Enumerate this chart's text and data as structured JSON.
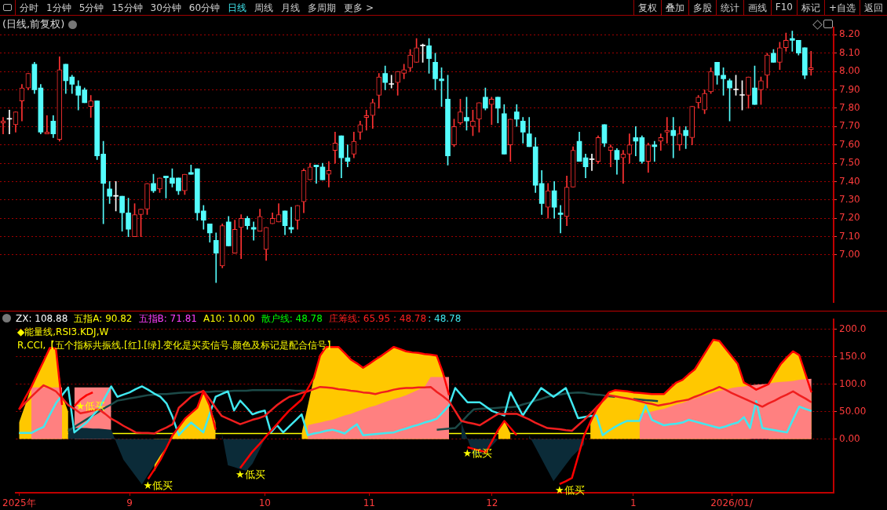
{
  "chart_data": [
    {
      "type": "other",
      "annotations": [
        "分时",
        "1分钟",
        "5分钟",
        "15分钟",
        "30分钟",
        "60分钟",
        "日线",
        "周线",
        "月线",
        "多周期",
        "更多 >",
        "复权",
        "叠加",
        "多股",
        "统计",
        "画线",
        "F10",
        "标记",
        "+自选",
        "返回"
      ]
    },
    {
      "type": "candlestick",
      "title": "(日线,前复权)",
      "tick_labels": "y",
      "grid": "y",
      "categories": [
        null,
        null,
        null,
        null,
        null,
        null,
        null,
        null,
        null,
        null,
        null,
        null,
        null,
        null,
        null,
        null,
        null,
        null,
        null,
        null,
        null,
        null,
        null,
        null,
        null,
        null,
        null,
        null,
        null,
        null,
        null,
        null,
        null,
        null,
        null,
        null,
        null,
        null,
        null,
        null,
        null,
        null,
        null,
        null,
        null,
        null,
        null,
        null,
        null,
        null,
        null,
        null,
        null,
        null,
        null,
        null,
        null,
        null,
        null,
        null,
        null,
        null,
        null,
        null,
        null,
        null,
        null,
        null,
        null,
        null,
        null,
        null,
        null,
        null,
        null,
        null,
        null,
        null,
        null,
        null,
        null,
        null,
        null,
        null,
        null,
        null,
        null,
        null,
        null,
        null,
        null,
        null,
        null,
        null,
        null,
        null,
        null,
        null,
        null,
        null,
        null,
        null,
        null,
        null,
        null,
        null,
        null,
        null,
        null,
        null,
        null,
        null,
        null,
        null,
        null,
        null,
        null,
        null,
        null,
        null,
        null,
        null,
        null,
        null,
        null,
        null,
        null,
        null,
        null,
        null
      ],
      "ylim": [
        6.74,
        8.24
      ],
      "yticks": [
        {
          "value": 7,
          "label": "7.00"
        },
        {
          "value": 7.1,
          "label": "7.10"
        },
        {
          "value": 7.2,
          "label": "7.20"
        },
        {
          "value": 7.3,
          "label": "7.30"
        },
        {
          "value": 7.4,
          "label": "7.40"
        },
        {
          "value": 7.5,
          "label": "7.50"
        },
        {
          "value": 7.6,
          "label": "7.60"
        },
        {
          "value": 7.7,
          "label": "7.70"
        },
        {
          "value": 7.8,
          "label": "7.80"
        },
        {
          "value": 7.9,
          "label": "7.90"
        },
        {
          "value": 8,
          "label": "8.00"
        },
        {
          "value": 8.1,
          "label": "8.10"
        },
        {
          "value": 8.2,
          "label": "8.20"
        }
      ],
      "ohlc": [
        [
          7.72,
          7.75,
          7.66,
          7.73
        ],
        [
          7.74,
          7.79,
          7.66,
          7.74
        ],
        [
          7.71,
          7.78,
          7.67,
          7.78
        ],
        [
          7.84,
          7.93,
          7.73,
          7.91
        ],
        [
          7.91,
          7.99,
          7.9,
          7.99
        ],
        [
          8.04,
          8.05,
          7.88,
          7.9
        ],
        [
          7.91,
          7.93,
          7.66,
          7.67
        ],
        [
          7.66,
          7.76,
          7.66,
          7.67
        ],
        [
          7.73,
          7.76,
          7.64,
          7.66
        ],
        [
          7.63,
          8.08,
          7.62,
          8.01
        ],
        [
          8.04,
          8.04,
          7.88,
          7.95
        ],
        [
          7.97,
          7.98,
          7.88,
          7.93
        ],
        [
          7.92,
          7.95,
          7.79,
          7.87
        ],
        [
          7.9,
          7.91,
          7.83,
          7.83
        ],
        [
          7.81,
          7.87,
          7.75,
          7.84
        ],
        [
          7.84,
          7.84,
          7.52,
          7.54
        ],
        [
          7.55,
          7.62,
          7.17,
          7.39
        ],
        [
          7.36,
          7.4,
          7.28,
          7.32
        ],
        [
          7.32,
          7.4,
          7.24,
          7.32
        ],
        [
          7.32,
          7.32,
          7.13,
          7.23
        ],
        [
          7.23,
          7.31,
          7.1,
          7.14
        ],
        [
          7.1,
          7.28,
          7.1,
          7.22
        ],
        [
          7.22,
          7.25,
          7.1,
          7.25
        ],
        [
          7.25,
          7.39,
          7.22,
          7.39
        ],
        [
          7.39,
          7.44,
          7.34,
          7.35
        ],
        [
          7.36,
          7.42,
          7.34,
          7.42
        ],
        [
          7.43,
          7.43,
          7.31,
          7.42
        ],
        [
          7.42,
          7.47,
          7.37,
          7.39
        ],
        [
          7.42,
          7.42,
          7.33,
          7.35
        ],
        [
          7.35,
          7.44,
          7.33,
          7.44
        ],
        [
          7.45,
          7.49,
          7.44,
          7.44
        ],
        [
          7.47,
          7.47,
          7.19,
          7.23
        ],
        [
          7.24,
          7.27,
          7.14,
          7.19
        ],
        [
          7.17,
          7.17,
          7.07,
          7.12
        ],
        [
          7.08,
          7.12,
          6.85,
          7.01
        ],
        [
          6.94,
          7.17,
          6.93,
          7.16
        ],
        [
          7.18,
          7.21,
          7.05,
          7.05
        ],
        [
          7.01,
          7.19,
          7.01,
          7.14
        ],
        [
          7.15,
          7.22,
          6.98,
          7.2
        ],
        [
          7.2,
          7.21,
          7.14,
          7.16
        ],
        [
          7.15,
          7.18,
          7.08,
          7.14
        ],
        [
          7.13,
          7.25,
          7.13,
          7.21
        ],
        [
          7.03,
          7.15,
          6.97,
          7.15
        ],
        [
          7.17,
          7.23,
          7.17,
          7.2
        ],
        [
          7.18,
          7.28,
          7.18,
          7.22
        ],
        [
          7.24,
          7.24,
          7.11,
          7.16
        ],
        [
          7.15,
          7.26,
          7.12,
          7.14
        ],
        [
          7.19,
          7.27,
          7.14,
          7.27
        ],
        [
          7.29,
          7.47,
          7.23,
          7.46
        ],
        [
          7.41,
          7.5,
          7.41,
          7.48
        ],
        [
          7.49,
          7.49,
          7.39,
          7.48
        ],
        [
          7.48,
          7.5,
          7.41,
          7.41
        ],
        [
          7.44,
          7.51,
          7.37,
          7.46
        ],
        [
          7.57,
          7.67,
          7.5,
          7.61
        ],
        [
          7.65,
          7.65,
          7.42,
          7.53
        ],
        [
          7.53,
          7.6,
          7.48,
          7.51
        ],
        [
          7.55,
          7.67,
          7.53,
          7.62
        ],
        [
          7.67,
          7.73,
          7.63,
          7.71
        ],
        [
          7.75,
          7.79,
          7.68,
          7.76
        ],
        [
          7.76,
          7.85,
          7.69,
          7.83
        ],
        [
          7.87,
          7.99,
          7.8,
          7.97
        ],
        [
          7.99,
          8.03,
          7.9,
          7.94
        ],
        [
          7.93,
          7.98,
          7.91,
          7.93
        ],
        [
          7.94,
          8.0,
          7.87,
          8.0
        ],
        [
          7.99,
          8.04,
          7.96,
          8.01
        ],
        [
          8.02,
          8.12,
          8.0,
          8.09
        ],
        [
          8.05,
          8.18,
          8.05,
          8.13
        ],
        [
          8.14,
          8.15,
          8.05,
          8.14
        ],
        [
          8.14,
          8.18,
          7.99,
          8.07
        ],
        [
          8.05,
          8.1,
          7.9,
          7.96
        ],
        [
          7.96,
          8.02,
          7.81,
          7.95
        ],
        [
          7.85,
          7.98,
          7.49,
          7.54
        ],
        [
          7.6,
          7.74,
          7.59,
          7.7
        ],
        [
          7.72,
          7.85,
          7.71,
          7.78
        ],
        [
          7.75,
          7.86,
          7.68,
          7.73
        ],
        [
          7.7,
          7.79,
          7.65,
          7.73
        ],
        [
          7.74,
          7.83,
          7.67,
          7.83
        ],
        [
          7.86,
          7.91,
          7.79,
          7.8
        ],
        [
          7.82,
          7.86,
          7.71,
          7.85
        ],
        [
          7.86,
          7.86,
          7.72,
          7.8
        ],
        [
          7.77,
          7.82,
          7.55,
          7.55
        ],
        [
          7.6,
          7.74,
          7.51,
          7.74
        ],
        [
          7.78,
          7.82,
          7.7,
          7.74
        ],
        [
          7.73,
          7.75,
          7.61,
          7.67
        ],
        [
          7.66,
          7.75,
          7.59,
          7.59
        ],
        [
          7.59,
          7.64,
          7.34,
          7.38
        ],
        [
          7.39,
          7.46,
          7.22,
          7.28
        ],
        [
          7.26,
          7.39,
          7.2,
          7.35
        ],
        [
          7.35,
          7.4,
          7.2,
          7.26
        ],
        [
          7.23,
          7.27,
          7.12,
          7.22
        ],
        [
          7.21,
          7.43,
          7.16,
          7.37
        ],
        [
          7.37,
          7.59,
          7.37,
          7.57
        ],
        [
          7.62,
          7.67,
          7.51,
          7.51
        ],
        [
          7.53,
          7.55,
          7.42,
          7.48
        ],
        [
          7.52,
          7.55,
          7.46,
          7.52
        ],
        [
          7.51,
          7.65,
          7.5,
          7.64
        ],
        [
          7.71,
          7.71,
          7.59,
          7.61
        ],
        [
          7.57,
          7.6,
          7.48,
          7.59
        ],
        [
          7.57,
          7.58,
          7.44,
          7.52
        ],
        [
          7.53,
          7.57,
          7.39,
          7.55
        ],
        [
          7.55,
          7.66,
          7.5,
          7.6
        ],
        [
          7.64,
          7.7,
          7.54,
          7.62
        ],
        [
          7.64,
          7.65,
          7.5,
          7.51
        ],
        [
          7.51,
          7.61,
          7.45,
          7.6
        ],
        [
          7.6,
          7.62,
          7.51,
          7.59
        ],
        [
          7.62,
          7.66,
          7.57,
          7.64
        ],
        [
          7.67,
          7.75,
          7.61,
          7.68
        ],
        [
          7.68,
          7.75,
          7.53,
          7.65
        ],
        [
          7.6,
          7.7,
          7.57,
          7.66
        ],
        [
          7.68,
          7.7,
          7.58,
          7.65
        ],
        [
          7.64,
          7.81,
          7.6,
          7.81
        ],
        [
          7.83,
          7.87,
          7.8,
          7.86
        ],
        [
          7.79,
          7.9,
          7.77,
          7.88
        ],
        [
          7.89,
          8.02,
          7.88,
          8.0
        ],
        [
          8.05,
          8.05,
          7.93,
          7.98
        ],
        [
          7.98,
          8.02,
          7.87,
          7.96
        ],
        [
          7.95,
          7.96,
          7.73,
          7.91
        ],
        [
          7.9,
          7.98,
          7.87,
          7.9
        ],
        [
          7.87,
          7.95,
          7.79,
          7.87
        ],
        [
          7.87,
          7.97,
          7.8,
          7.97
        ],
        [
          7.91,
          8.03,
          7.82,
          7.82
        ],
        [
          7.9,
          7.97,
          7.82,
          7.95
        ],
        [
          7.98,
          8.1,
          7.91,
          8.09
        ],
        [
          8.1,
          8.12,
          8.05,
          8.05
        ],
        [
          8.05,
          8.16,
          8.01,
          8.13
        ],
        [
          8.13,
          8.21,
          8.11,
          8.17
        ],
        [
          8.18,
          8.22,
          8.11,
          8.17
        ],
        [
          8.17,
          8.17,
          8.09,
          8.1
        ],
        [
          8.13,
          8.13,
          7.96,
          7.98
        ],
        [
          8.01,
          8.11,
          7.98,
          8.02
        ]
      ]
    },
    {
      "type": "line",
      "grid": "y",
      "ylim": [
        -98,
        218
      ],
      "categories": [
        "2025年",
        null,
        null,
        null,
        null,
        null,
        null,
        null,
        null,
        null,
        null,
        null,
        null,
        null,
        null,
        null,
        null,
        null,
        "9",
        null,
        null,
        null,
        null,
        null,
        null,
        null,
        null,
        null,
        null,
        null,
        null,
        null,
        null,
        null,
        null,
        null,
        null,
        null,
        null,
        null,
        "10",
        null,
        null,
        null,
        null,
        null,
        null,
        null,
        null,
        null,
        null,
        null,
        null,
        null,
        null,
        null,
        null,
        "11",
        null,
        null,
        null,
        null,
        null,
        null,
        null,
        null,
        null,
        null,
        null,
        null,
        null,
        null,
        null,
        null,
        null,
        null,
        null,
        "12",
        null,
        null,
        null,
        null,
        null,
        null,
        null,
        null,
        null,
        null,
        null,
        null,
        null,
        null,
        null,
        null,
        null,
        null,
        null,
        null,
        null,
        null,
        "1",
        null,
        null,
        null,
        null,
        null,
        null,
        null,
        null,
        null,
        null,
        null,
        null,
        null,
        null,
        null,
        "2026/01/",
        null,
        null,
        null,
        null,
        null,
        null,
        null,
        null,
        null,
        null,
        null,
        null,
        null
      ],
      "yticks": [
        {
          "value": 0,
          "label": "0.00"
        },
        {
          "value": 50,
          "label": "50.00"
        },
        {
          "value": 100,
          "label": "100.0"
        },
        {
          "value": 150,
          "label": "150.0"
        },
        {
          "value": 200,
          "label": "200.0"
        }
      ],
      "ref_lines": [
        {
          "axis": "y",
          "value": 10,
          "color": "#ffff00"
        }
      ],
      "annotations": [
        "ZX: 108.88",
        "五指A: 90.82",
        "五指B: 71.81",
        "A10: 10.00",
        "散户线: 48.78",
        "庄筹线: 65.95 : 48.78",
        ": 48.78",
        "◆能量线,RSI3.KDJ,W",
        "R,CCI,【五个指标共振线.[红].[绿].变化是买卖信号.颜色及标记是配合信号】"
      ],
      "series": [
        {
          "type": "area",
          "color": "#ffc800",
          "values": [
            30,
            62,
            95,
            119,
            142,
            166,
            165,
            80,
            50,
            null,
            null,
            null,
            null,
            null,
            null,
            null,
            null,
            null,
            null,
            null,
            null,
            null,
            -60,
            -38,
            -16,
            7,
            22,
            37,
            47,
            57,
            87,
            60,
            30,
            null,
            null,
            null,
            null,
            null,
            null,
            null,
            null,
            null,
            null,
            null,
            null,
            null,
            10,
            60,
            112,
            152,
            168,
            168,
            168,
            157,
            145,
            138,
            130,
            137,
            145,
            152,
            160,
            168,
            164,
            160,
            158,
            157,
            155,
            154,
            152,
            121,
            100,
            null,
            null,
            null,
            null,
            null,
            null,
            null,
            17,
            33,
            10,
            null,
            null,
            null,
            null,
            null,
            null,
            null,
            null,
            null,
            null,
            null,
            null,
            30,
            54,
            70,
            85,
            89,
            88,
            87,
            85,
            84,
            83,
            82,
            82,
            82,
            93,
            103,
            108,
            118,
            127,
            145,
            163,
            181,
            179,
            165,
            151,
            137,
            103,
            97,
            null,
            null,
            100,
            119,
            137,
            149,
            160,
            153,
            119,
            85
          ]
        },
        {
          "type": "area",
          "color": "#ff8080",
          "values": [
            null,
            null,
            94,
            94,
            94,
            94,
            94,
            94,
            null,
            94,
            94,
            94,
            94,
            94,
            94,
            94,
            null,
            null,
            null,
            null,
            null,
            null,
            null,
            null,
            null,
            null,
            null,
            null,
            null,
            null,
            null,
            null,
            null,
            null,
            null,
            null,
            null,
            null,
            null,
            null,
            null,
            null,
            null,
            null,
            null,
            null,
            null,
            25,
            28,
            30,
            33,
            35,
            39,
            43,
            46,
            50,
            54,
            58,
            61,
            65,
            69,
            73,
            76,
            80,
            85,
            90,
            95,
            113,
            113,
            113,
            113,
            null,
            null,
            null,
            null,
            null,
            null,
            null,
            null,
            null,
            null,
            null,
            null,
            null,
            null,
            null,
            null,
            null,
            null,
            null,
            null,
            null,
            null,
            null,
            null,
            null,
            null,
            null,
            null,
            null,
            null,
            45,
            48,
            50,
            53,
            55,
            59,
            63,
            66,
            70,
            74,
            78,
            81,
            85,
            88,
            90,
            93,
            95,
            96,
            98,
            99,
            100,
            101,
            103,
            104,
            105,
            106,
            108,
            109,
            110
          ]
        },
        {
          "type": "area",
          "color": "#0b2b38",
          "values": [
            null,
            null,
            null,
            null,
            null,
            null,
            null,
            null,
            20,
            20,
            20,
            20,
            19,
            19,
            18,
            17,
            -11,
            -38,
            -53,
            -68,
            -83,
            -65,
            -48,
            -30,
            -15,
            0,
            null,
            null,
            null,
            null,
            null,
            null,
            null,
            12,
            -48,
            -51,
            -55,
            -58,
            -45,
            -23,
            0,
            null,
            null,
            null,
            null,
            null,
            null,
            null,
            null,
            null,
            null,
            null,
            null,
            null,
            null,
            null,
            null,
            null,
            null,
            null,
            null,
            null,
            null,
            null,
            null,
            null,
            null,
            null,
            null,
            null,
            null,
            null,
            30,
            0,
            -30,
            -27,
            -24,
            -12,
            0,
            null,
            null,
            null,
            null,
            7,
            -14,
            -35,
            -56,
            -77,
            -62,
            -47,
            -32,
            -21,
            -10,
            null,
            null,
            null,
            null,
            null,
            null,
            null,
            null,
            null,
            null,
            null,
            null,
            null,
            null,
            null,
            null,
            null,
            null,
            null,
            null,
            null,
            null,
            null,
            null,
            null,
            null,
            null,
            null,
            null,
            null,
            null,
            null,
            null,
            null,
            null,
            null,
            null
          ]
        },
        {
          "type": "line",
          "color": "#1c4a48",
          "values": [
            null,
            null,
            null,
            null,
            null,
            null,
            null,
            null,
            15,
            22,
            29,
            36,
            43,
            50,
            57,
            63,
            70,
            72,
            74,
            76,
            78,
            80,
            81,
            82,
            82,
            83,
            84,
            85,
            85,
            86,
            86,
            86,
            87,
            87,
            87,
            88,
            88,
            88,
            89,
            89,
            89,
            89,
            89,
            89,
            89,
            88,
            88,
            88,
            null,
            null,
            null,
            null,
            null,
            null,
            null,
            null,
            null,
            null,
            null,
            null,
            null,
            null,
            null,
            null,
            null,
            null,
            null,
            null,
            17,
            18,
            19,
            20,
            31,
            43,
            54,
            55,
            56,
            56,
            57,
            58,
            58,
            59,
            63,
            66,
            70,
            73,
            77,
            80,
            81,
            83,
            84,
            85,
            84,
            82,
            81,
            80,
            78,
            77,
            null,
            null,
            73,
            72,
            71,
            70,
            69,
            null,
            null,
            null,
            null,
            null,
            null,
            null,
            null,
            null,
            null,
            null,
            null,
            null,
            null,
            null,
            null,
            null,
            null,
            null,
            null,
            null,
            null,
            null,
            null,
            null
          ]
        },
        {
          "type": "line",
          "color": "#40e8f0",
          "values": [
            11,
            11,
            11,
            17,
            22,
            44,
            65,
            80,
            94,
            12,
            21,
            30,
            43,
            55,
            76,
            96,
            77,
            81,
            85,
            91,
            96,
            90,
            83,
            77,
            65,
            40,
            7,
            19,
            30,
            21,
            12,
            45,
            77,
            82,
            87,
            52,
            70,
            58,
            45,
            49,
            52,
            12,
            25,
            12,
            23,
            34,
            45,
            7,
            10,
            12,
            15,
            17,
            14,
            10,
            19,
            27,
            7,
            8,
            9,
            10,
            11,
            12,
            16,
            19,
            23,
            26,
            30,
            33,
            37,
            49,
            61,
            93,
            80,
            67,
            67,
            67,
            59,
            51,
            47,
            43,
            85,
            64,
            43,
            60,
            76,
            93,
            85,
            77,
            85,
            93,
            66,
            38,
            40,
            42,
            43,
            7,
            15,
            22,
            28,
            33,
            33,
            33,
            61,
            35,
            30,
            25,
            27,
            28,
            30,
            35,
            32,
            29,
            26,
            23,
            20,
            23,
            27,
            30,
            40,
            20,
            69,
            20,
            18,
            16,
            14,
            12,
            36,
            59,
            55,
            51
          ]
        },
        {
          "type": "line",
          "color": "#f01e1e",
          "values": [
            54,
            66,
            77,
            88,
            98,
            93,
            87,
            75,
            62,
            55,
            47,
            49,
            52,
            54,
            46,
            37,
            31,
            24,
            18,
            12,
            11,
            11,
            10,
            16,
            21,
            27,
            57,
            67,
            77,
            83,
            88,
            73,
            57,
            42,
            37,
            32,
            27,
            31,
            35,
            38,
            42,
            52,
            62,
            70,
            77,
            80,
            84,
            87,
            91,
            95,
            94,
            93,
            91,
            90,
            88,
            87,
            85,
            84,
            82,
            85,
            87,
            90,
            92,
            93,
            93,
            94,
            94,
            95,
            86,
            78,
            69,
            51,
            33,
            30,
            28,
            25,
            32,
            39,
            46,
            46,
            46,
            46,
            41,
            36,
            30,
            25,
            20,
            19,
            18,
            16,
            15,
            25,
            35,
            46,
            58,
            69,
            80,
            78,
            76,
            74,
            72,
            69,
            66,
            64,
            61,
            63,
            65,
            68,
            70,
            72,
            77,
            81,
            86,
            90,
            95,
            90,
            84,
            79,
            74,
            69,
            64,
            59,
            65,
            70,
            76,
            81,
            87,
            80,
            74,
            67
          ]
        },
        {
          "type": "line",
          "color": "#ff0000",
          "values": [
            54,
            75,
            95,
            119,
            142,
            166,
            165,
            62,
            null,
            60,
            72,
            80,
            85,
            null,
            null,
            null,
            null,
            null,
            null,
            null,
            null,
            -73,
            -56,
            -38,
            -16,
            7,
            22,
            37,
            47,
            57,
            87,
            62,
            17,
            null,
            null,
            null,
            -53,
            -38,
            -23,
            -11,
            2,
            15,
            27,
            40,
            52,
            62,
            72,
            92,
            112,
            152,
            168,
            168,
            168,
            157,
            145,
            138,
            130,
            137,
            145,
            152,
            160,
            168,
            164,
            160,
            158,
            157,
            155,
            154,
            152,
            121,
            80,
            null,
            null,
            -15,
            -18,
            -21,
            -24,
            -4,
            17,
            33,
            20,
            7,
            null,
            null,
            null,
            null,
            null,
            null,
            -82,
            -77,
            -71,
            -32,
            7,
            31,
            54,
            70,
            85,
            89,
            88,
            87,
            85,
            84,
            83,
            82,
            82,
            82,
            93,
            103,
            108,
            118,
            127,
            145,
            163,
            181,
            179,
            165,
            151,
            137,
            103,
            97,
            90,
            95,
            100,
            119,
            137,
            149,
            160,
            153,
            119,
            85
          ],
          "value_labels": [
            null,
            null,
            null,
            null,
            null,
            null,
            null,
            null,
            null,
            null,
            "★低买",
            null,
            null,
            null,
            null,
            null,
            null,
            null,
            null,
            null,
            null,
            "★低买",
            null,
            null,
            null,
            null,
            null,
            null,
            null,
            null,
            null,
            null,
            null,
            null,
            null,
            null,
            "★低买",
            null,
            null,
            null,
            null,
            null,
            null,
            null,
            null,
            null,
            null,
            null,
            null,
            null,
            null,
            null,
            null,
            null,
            null,
            null,
            null,
            null,
            null,
            null,
            null,
            null,
            null,
            null,
            null,
            null,
            null,
            null,
            null,
            null,
            null,
            null,
            null,
            "★低买",
            null,
            null,
            null,
            null,
            null,
            null,
            null,
            null,
            null,
            null,
            null,
            null,
            null,
            null,
            "★低买",
            null,
            null,
            null,
            null,
            null,
            null,
            null,
            null,
            null,
            null,
            null,
            null,
            null,
            null,
            null,
            null,
            null,
            null,
            null,
            null,
            null,
            null,
            null,
            null,
            null,
            null,
            null,
            null,
            null,
            null,
            null,
            null,
            null,
            null,
            null,
            null,
            null,
            null,
            null,
            null,
            null
          ]
        }
      ]
    }
  ]
}
